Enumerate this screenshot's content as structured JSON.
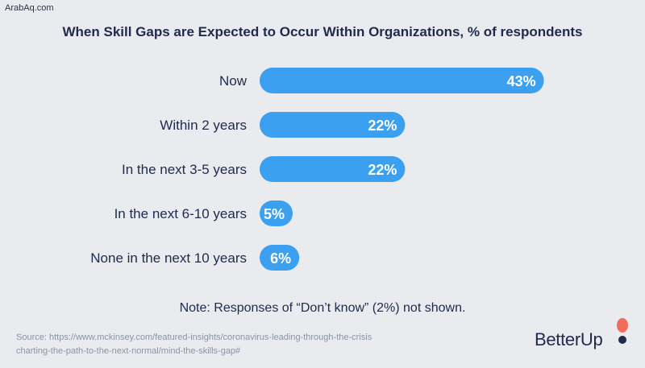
{
  "watermark": "ArabAq.com",
  "chart_data": {
    "type": "bar",
    "orientation": "horizontal",
    "title": "When Skill Gaps are Expected to Occur Within Organizations, % of respondents",
    "categories": [
      "Now",
      "Within 2 years",
      "In the next 3-5 years",
      "In the next 6-10 years",
      "None in the next 10 years"
    ],
    "values": [
      43,
      22,
      22,
      5,
      6
    ],
    "value_labels": [
      "43%",
      "22%",
      "22%",
      "5%",
      "6%"
    ],
    "bar_color": "#3ca0f0",
    "grid": false,
    "legend": "none"
  },
  "note": "Note: Responses of “Don’t know” (2%) not shown.",
  "source": {
    "line1": "Source: https://www.mckinsey.com/featured-insights/coronavirus-leading-through-the-crisis",
    "line2": "charting-the-path-to-the-next-normal/mind-the-skills-gap#"
  },
  "logo": {
    "text": "BetterUp",
    "accent": "#f26b5b",
    "dot": "#1f2a4d"
  }
}
